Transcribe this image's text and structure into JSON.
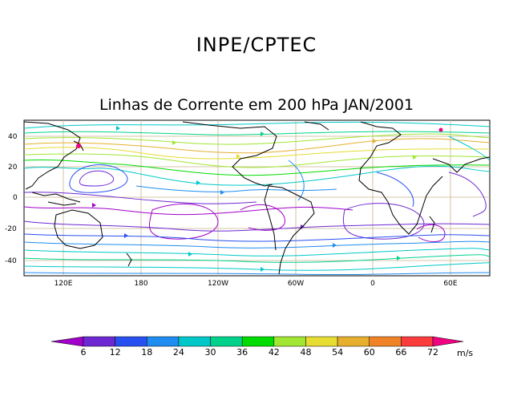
{
  "header": {
    "title": "INPE/CPTEC",
    "subtitle": "Linhas de Corrente em 200 hPa JAN/2001"
  },
  "map": {
    "lat_labels": [
      "40",
      "20",
      "0",
      "-20",
      "-40"
    ],
    "lon_labels": [
      "120E",
      "180",
      "120W",
      "60W",
      "0",
      "60E"
    ]
  },
  "colorbar": {
    "labels": [
      "6",
      "12",
      "18",
      "24",
      "30",
      "36",
      "42",
      "48",
      "54",
      "60",
      "66",
      "72"
    ],
    "unit": "m/s",
    "colors": [
      "#a000c8",
      "#6e28d2",
      "#2850f0",
      "#1e8cf0",
      "#00c8c8",
      "#00d28c",
      "#00dc00",
      "#a0e632",
      "#e6dc32",
      "#e6af2d",
      "#f08228",
      "#fa3c3c",
      "#f00082"
    ]
  }
}
